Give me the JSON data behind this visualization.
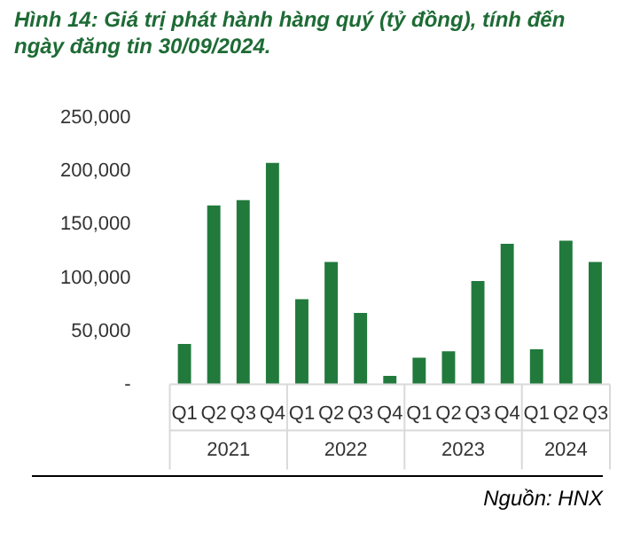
{
  "chart_data": {
    "type": "bar",
    "title": "Hình 14: Giá trị phát hành hàng quý (tỷ đồng), tính đến ngày đăng tin 30/09/2024.",
    "categories": [
      "Q1",
      "Q2",
      "Q3",
      "Q4",
      "Q1",
      "Q2",
      "Q3",
      "Q4",
      "Q1",
      "Q2",
      "Q3",
      "Q4",
      "Q1",
      "Q2",
      "Q3"
    ],
    "values": [
      38000,
      168000,
      173000,
      208000,
      80000,
      115000,
      67000,
      8000,
      25000,
      31000,
      97000,
      132000,
      33000,
      135000,
      115000
    ],
    "color": "#217a3c",
    "ylim": [
      0,
      250000
    ],
    "yticks": [
      {
        "value": 0,
        "label": "-"
      },
      {
        "value": 50000,
        "label": "50,000"
      },
      {
        "value": 100000,
        "label": "100,000"
      },
      {
        "value": 150000,
        "label": "150,000"
      },
      {
        "value": 200000,
        "label": "200,000"
      },
      {
        "value": 250000,
        "label": "250,000"
      }
    ],
    "annotations": [
      "2021",
      "2022",
      "2023",
      "2024",
      "Nguồn: HNX"
    ]
  }
}
